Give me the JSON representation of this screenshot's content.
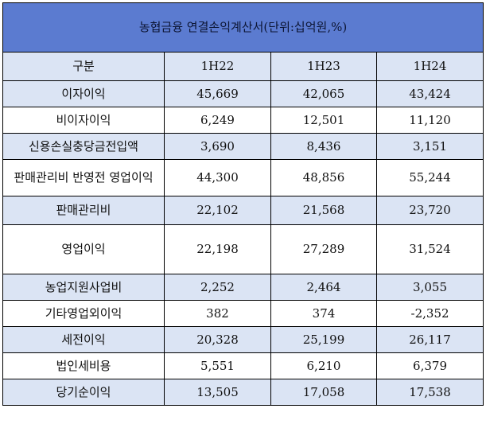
{
  "title": "농협금융  연결손익계산서(단위:십억원,%)",
  "headers": [
    "구분",
    "1H22",
    "1H23",
    "1H24"
  ],
  "rows": [
    {
      "label": "이자이익",
      "values": [
        "45,669",
        "42,065",
        "43,424"
      ]
    },
    {
      "label": "비이자이익",
      "values": [
        "6,249",
        "12,501",
        "11,120"
      ]
    },
    {
      "label": "신용손실충당금전입액",
      "values": [
        "3,690",
        "8,436",
        "3,151"
      ]
    },
    {
      "label": "판매관리비 반영전 영업이익",
      "values": [
        "44,300",
        "48,856",
        "55,244"
      ]
    },
    {
      "label": "판매관리비",
      "values": [
        "22,102",
        "21,568",
        "23,720"
      ]
    },
    {
      "label": "영업이익",
      "values": [
        "22,198",
        "27,289",
        "31,524"
      ]
    },
    {
      "label": "농업지원사업비",
      "values": [
        "2,252",
        "2,464",
        "3,055"
      ]
    },
    {
      "label": "기타영업외이익",
      "values": [
        "382",
        "374",
        "-2,352"
      ]
    },
    {
      "label": "세전이익",
      "values": [
        "20,328",
        "25,199",
        "26,117"
      ]
    },
    {
      "label": "법인세비용",
      "values": [
        "5,551",
        "6,210",
        "6,379"
      ]
    },
    {
      "label": "당기순이익",
      "values": [
        "13,505",
        "17,058",
        "17,538"
      ]
    }
  ],
  "colors": {
    "title_bg": "#5b7bd0",
    "alt_row_bg": "#dbe4f4",
    "plain_row_bg": "#ffffff",
    "border": "#000000"
  }
}
